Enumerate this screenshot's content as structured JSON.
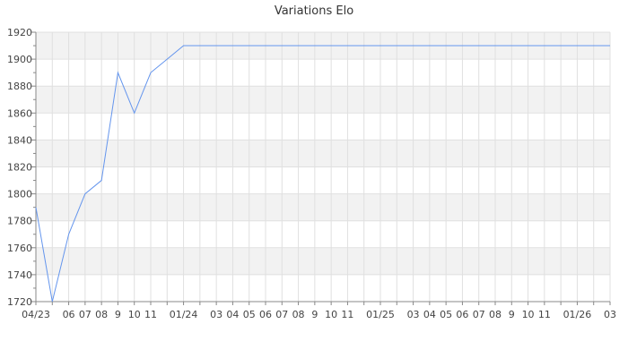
{
  "chart_data": {
    "type": "line",
    "title": "Variations Elo",
    "xlabel": "",
    "ylabel": "",
    "ylim": [
      1720,
      1920
    ],
    "yticks": [
      1720,
      1740,
      1760,
      1780,
      1800,
      1820,
      1840,
      1860,
      1880,
      1900,
      1920
    ],
    "grid": true,
    "x_tick_labels": [
      "04/23",
      "",
      "06",
      "07",
      "08",
      "9",
      "10",
      "11",
      "",
      "01/24",
      "",
      "03",
      "04",
      "05",
      "06",
      "07",
      "08",
      "9",
      "10",
      "11",
      "",
      "01/25",
      "",
      "03",
      "04",
      "05",
      "06",
      "07",
      "08",
      "9",
      "10",
      "11",
      "",
      "01/26",
      "",
      "03"
    ],
    "series": [
      {
        "color": "#6495ed",
        "x": [
          "2023-04",
          "2023-05",
          "2023-06",
          "2023-07",
          "2023-08",
          "2023-09",
          "2023-10",
          "2023-11",
          "2023-12",
          "2024-01",
          "2026-03"
        ],
        "values": [
          1790,
          1720,
          1770,
          1800,
          1810,
          1890,
          1860,
          1890,
          1900,
          1910,
          1910
        ]
      }
    ]
  }
}
